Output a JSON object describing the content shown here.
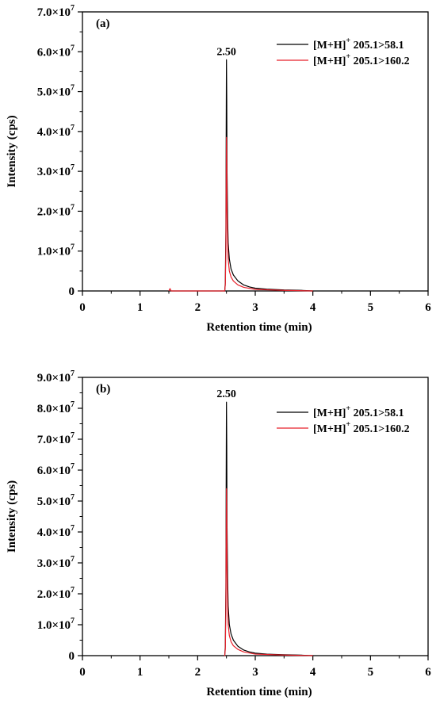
{
  "chart_data": [
    {
      "type": "line",
      "panel_label": "(a)",
      "xlabel": "Retention time (min)",
      "ylabel": "Intensity (cps)",
      "xlim": [
        0,
        6
      ],
      "ylim": [
        0,
        70000000
      ],
      "x_ticks": [
        "0",
        "1",
        "2",
        "3",
        "4",
        "5",
        "6"
      ],
      "y_ticks": [
        {
          "mantissa": "0",
          "exp": ""
        },
        {
          "mantissa": "1.0×10",
          "exp": "7"
        },
        {
          "mantissa": "2.0×10",
          "exp": "7"
        },
        {
          "mantissa": "3.0×10",
          "exp": "7"
        },
        {
          "mantissa": "4.0×10",
          "exp": "7"
        },
        {
          "mantissa": "5.0×10",
          "exp": "7"
        },
        {
          "mantissa": "6.0×10",
          "exp": "7"
        },
        {
          "mantissa": "7.0×10",
          "exp": "7"
        }
      ],
      "peak_annotation": {
        "text": "2.50",
        "x": 2.5,
        "y": 58000000
      },
      "legend_position": "top-right",
      "grid": false,
      "series": [
        {
          "legend": {
            "base": "[M+H]",
            "sup": "+",
            "rest": " 205.1>58.1"
          },
          "color": "#000000",
          "x": [
            2.46,
            2.47,
            2.48,
            2.49,
            2.495,
            2.5,
            2.505,
            2.51,
            2.52,
            2.53,
            2.55,
            2.58,
            2.62,
            2.7,
            2.8,
            2.9,
            3.0,
            3.2,
            3.5,
            3.8,
            4.0
          ],
          "y": [
            0,
            0,
            2000000,
            15000000,
            38000000,
            58000000,
            48000000,
            30000000,
            18000000,
            12000000,
            8000000,
            5500000,
            4000000,
            2500000,
            1500000,
            1000000,
            700000,
            450000,
            250000,
            150000,
            0
          ]
        },
        {
          "legend": {
            "base": "[M+H]",
            "sup": "+",
            "rest": " 205.1>160.2"
          },
          "color": "#e8202a",
          "x": [
            1.5,
            1.52,
            1.54,
            1.56,
            2.46,
            2.47,
            2.48,
            2.49,
            2.495,
            2.5,
            2.505,
            2.51,
            2.52,
            2.53,
            2.55,
            2.58,
            2.62,
            2.7,
            2.8,
            3.0,
            3.5,
            4.0
          ],
          "y": [
            0,
            600000,
            0,
            0,
            0,
            0,
            1500000,
            10000000,
            25000000,
            38500000,
            32000000,
            20000000,
            12000000,
            8000000,
            5000000,
            3500000,
            2500000,
            1500000,
            900000,
            400000,
            150000,
            0
          ]
        }
      ]
    },
    {
      "type": "line",
      "panel_label": "(b)",
      "xlabel": "Retention time (min)",
      "ylabel": "Intensity (cps)",
      "xlim": [
        0,
        6
      ],
      "ylim": [
        0,
        90000000
      ],
      "x_ticks": [
        "0",
        "1",
        "2",
        "3",
        "4",
        "5",
        "6"
      ],
      "y_ticks": [
        {
          "mantissa": "0",
          "exp": ""
        },
        {
          "mantissa": "1.0×10",
          "exp": "7"
        },
        {
          "mantissa": "2.0×10",
          "exp": "7"
        },
        {
          "mantissa": "3.0×10",
          "exp": "7"
        },
        {
          "mantissa": "4.0×10",
          "exp": "7"
        },
        {
          "mantissa": "5.0×10",
          "exp": "7"
        },
        {
          "mantissa": "6.0×10",
          "exp": "7"
        },
        {
          "mantissa": "7.0×10",
          "exp": "7"
        },
        {
          "mantissa": "8.0×10",
          "exp": "7"
        },
        {
          "mantissa": "9.0×10",
          "exp": "7"
        }
      ],
      "peak_annotation": {
        "text": "2.50",
        "x": 2.5,
        "y": 82000000
      },
      "legend_position": "top-right",
      "grid": false,
      "series": [
        {
          "legend": {
            "base": "[M+H]",
            "sup": "+",
            "rest": " 205.1>58.1"
          },
          "color": "#000000",
          "x": [
            2.46,
            2.47,
            2.48,
            2.49,
            2.495,
            2.5,
            2.505,
            2.51,
            2.52,
            2.53,
            2.55,
            2.58,
            2.62,
            2.7,
            2.8,
            2.9,
            3.0,
            3.2,
            3.5,
            3.8,
            4.0
          ],
          "y": [
            0,
            0,
            3000000,
            22000000,
            55000000,
            82000000,
            68000000,
            42000000,
            25000000,
            16000000,
            10000000,
            7000000,
            5000000,
            3000000,
            1800000,
            1200000,
            800000,
            500000,
            300000,
            150000,
            0
          ]
        },
        {
          "legend": {
            "base": "[M+H]",
            "sup": "+",
            "rest": " 205.1>160.2"
          },
          "color": "#e8202a",
          "x": [
            2.46,
            2.47,
            2.48,
            2.49,
            2.495,
            2.5,
            2.505,
            2.51,
            2.52,
            2.53,
            2.55,
            2.58,
            2.62,
            2.7,
            2.8,
            3.0,
            3.5,
            4.0
          ],
          "y": [
            0,
            0,
            2000000,
            15000000,
            36000000,
            54000000,
            45000000,
            28000000,
            16000000,
            10000000,
            6500000,
            4500000,
            3200000,
            2000000,
            1200000,
            500000,
            200000,
            0
          ]
        }
      ]
    }
  ]
}
